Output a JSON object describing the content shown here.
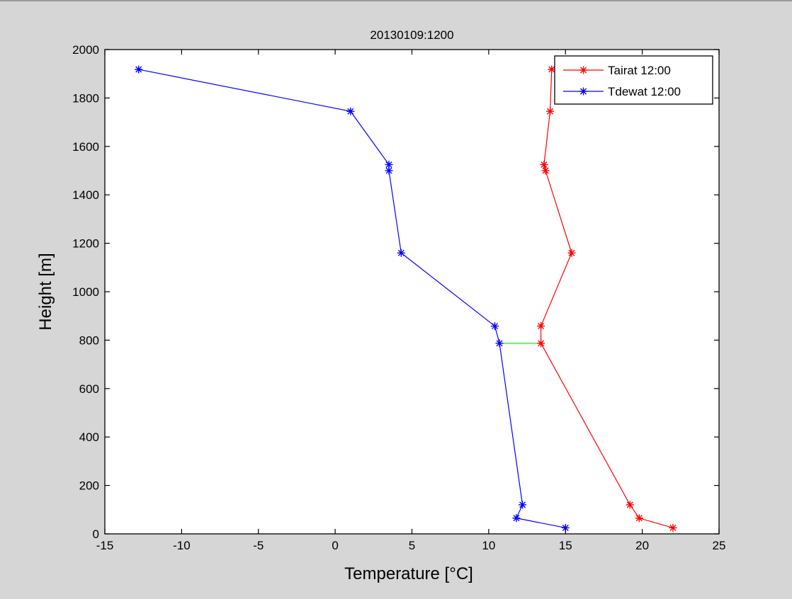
{
  "chart_data": {
    "type": "line",
    "title": "20130109:1200",
    "xlabel": "Temperature [°C]",
    "ylabel": "Height [m]",
    "xlim": [
      -15,
      25
    ],
    "ylim": [
      0,
      2000
    ],
    "xticks": [
      "-15",
      "-10",
      "-5",
      "0",
      "5",
      "10",
      "15",
      "20",
      "25"
    ],
    "yticks": [
      "0",
      "200",
      "400",
      "600",
      "800",
      "1000",
      "1200",
      "1400",
      "1600",
      "1800",
      "2000"
    ],
    "grid": false,
    "legend_position": "top-right",
    "series": [
      {
        "name": "Tairat 12:00",
        "color": "#ff0000",
        "marker": "asterisk",
        "points": [
          {
            "x": 22.0,
            "y": 25
          },
          {
            "x": 19.8,
            "y": 65
          },
          {
            "x": 19.2,
            "y": 120
          },
          {
            "x": 13.4,
            "y": 787
          },
          {
            "x": 13.4,
            "y": 858
          },
          {
            "x": 15.4,
            "y": 1160
          },
          {
            "x": 13.7,
            "y": 1500
          },
          {
            "x": 13.6,
            "y": 1525
          },
          {
            "x": 14.0,
            "y": 1745
          },
          {
            "x": 14.1,
            "y": 1918
          }
        ]
      },
      {
        "name": "Tdewat 12:00",
        "color": "#0000ff",
        "marker": "asterisk",
        "points": [
          {
            "x": 15.0,
            "y": 25
          },
          {
            "x": 11.8,
            "y": 65
          },
          {
            "x": 12.2,
            "y": 120
          },
          {
            "x": 10.7,
            "y": 787
          },
          {
            "x": 10.4,
            "y": 858
          },
          {
            "x": 4.3,
            "y": 1160
          },
          {
            "x": 3.5,
            "y": 1500
          },
          {
            "x": 3.5,
            "y": 1525
          },
          {
            "x": 1.0,
            "y": 1745
          },
          {
            "x": -12.8,
            "y": 1918
          }
        ]
      }
    ],
    "connector": {
      "color": "#00ff00",
      "y": 787,
      "x_start": 10.7,
      "x_end": 13.4
    }
  }
}
